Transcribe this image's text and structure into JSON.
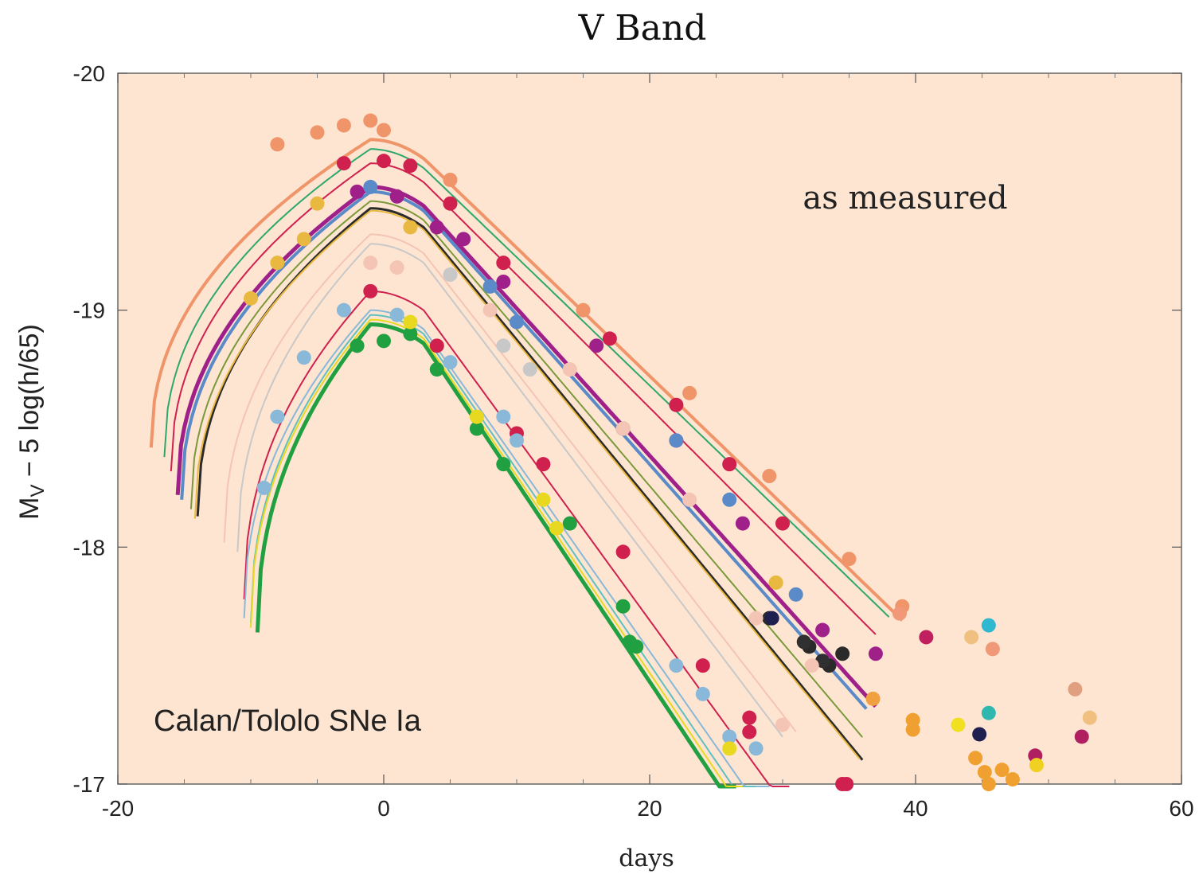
{
  "chart_data": {
    "type": "line",
    "title": "V Band",
    "xlabel": "days",
    "ylabel_main": "M",
    "ylabel_sub": "V",
    "ylabel_rest": " − 5 log(h/65)",
    "annotation_top": "as measured",
    "annotation_bottom": "Calan/Tololo SNe Ia",
    "xlim": [
      -20,
      60
    ],
    "ylim": [
      -20,
      -17
    ],
    "y_inverted": true,
    "x_ticks": [
      -20,
      0,
      20,
      40,
      60
    ],
    "y_ticks": [
      -20,
      -19,
      -18,
      -17
    ],
    "grid": false,
    "background": "#fde5d2",
    "series": [
      {
        "color": "#f0956a",
        "width": 4,
        "peak": -19.72,
        "start": -17.5,
        "decline": 0.052,
        "end": 39,
        "points": [
          [
            -8,
            -19.7
          ],
          [
            -5,
            -19.75
          ],
          [
            -3,
            -19.78
          ],
          [
            -1,
            -19.8
          ],
          [
            0,
            -19.76
          ],
          [
            5,
            -19.55
          ],
          [
            15,
            -19.0
          ],
          [
            23,
            -18.65
          ],
          [
            29,
            -18.3
          ],
          [
            35,
            -17.95
          ],
          [
            39,
            -17.75
          ]
        ]
      },
      {
        "color": "#2ea86a",
        "width": 2,
        "peak": -19.68,
        "start": -16.5,
        "decline": 0.052,
        "end": 38,
        "points": []
      },
      {
        "color": "#d0204e",
        "width": 2,
        "peak": -19.62,
        "start": -16,
        "decline": 0.054,
        "end": 37,
        "points": [
          [
            -3,
            -19.62
          ],
          [
            0,
            -19.63
          ],
          [
            2,
            -19.61
          ],
          [
            5,
            -19.45
          ],
          [
            9,
            -19.2
          ],
          [
            17,
            -18.88
          ],
          [
            22,
            -18.6
          ],
          [
            26,
            -18.35
          ],
          [
            30,
            -18.1
          ]
        ]
      },
      {
        "color": "#a0208a",
        "width": 5,
        "peak": -19.52,
        "start": -15.5,
        "decline": 0.06,
        "end": 37,
        "points": [
          [
            -2,
            -19.5
          ],
          [
            1,
            -19.48
          ],
          [
            4,
            -19.35
          ],
          [
            6,
            -19.3
          ],
          [
            9,
            -19.12
          ],
          [
            16,
            -18.85
          ],
          [
            22,
            -18.45
          ],
          [
            27,
            -18.1
          ],
          [
            33,
            -17.65
          ],
          [
            37,
            -17.55
          ]
        ]
      },
      {
        "color": "#5a8ac8",
        "width": 4,
        "peak": -19.5,
        "start": -15.2,
        "decline": 0.061,
        "end": 36.5,
        "points": [
          [
            -1,
            -19.52
          ],
          [
            8,
            -19.1
          ],
          [
            10,
            -18.95
          ],
          [
            22,
            -18.45
          ],
          [
            26,
            -18.2
          ],
          [
            31,
            -17.8
          ]
        ]
      },
      {
        "color": "#7a9a3a",
        "width": 2,
        "peak": -19.46,
        "start": -14.5,
        "decline": 0.064,
        "end": 36,
        "points": []
      },
      {
        "color": "#2a2a2a",
        "width": 3,
        "peak": -19.43,
        "start": -14,
        "decline": 0.066,
        "end": 36,
        "points": [
          [
            18,
            -18.5
          ],
          [
            29,
            -17.7
          ],
          [
            32,
            -17.58
          ],
          [
            33.5,
            -17.5
          ],
          [
            34.5,
            -17.55
          ]
        ]
      },
      {
        "color": "#e8b840",
        "width": 2,
        "peak": -19.42,
        "start": -14.2,
        "decline": 0.066,
        "end": 36,
        "points": [
          [
            -5,
            -19.45
          ],
          [
            -6,
            -19.3
          ],
          [
            -8,
            -19.2
          ],
          [
            -10,
            -19.05
          ],
          [
            2,
            -19.35
          ],
          [
            29.5,
            -17.85
          ]
        ]
      },
      {
        "color": "#f4c4b4",
        "width": 2,
        "peak": -19.32,
        "start": -12,
        "decline": 0.07,
        "end": 31,
        "points": [
          [
            -1,
            -19.2
          ],
          [
            1,
            -19.18
          ],
          [
            8,
            -19.0
          ],
          [
            14,
            -18.75
          ],
          [
            18,
            -18.5
          ],
          [
            23,
            -18.2
          ],
          [
            28,
            -17.7
          ],
          [
            30,
            -17.25
          ]
        ]
      },
      {
        "color": "#c8c8c8",
        "width": 2,
        "peak": -19.28,
        "start": -11,
        "decline": 0.072,
        "end": 30,
        "points": [
          [
            5,
            -19.15
          ],
          [
            9,
            -18.85
          ],
          [
            11,
            -18.75
          ]
        ]
      },
      {
        "color": "#d0204e",
        "width": 2,
        "peak": -19.08,
        "start": -10.5,
        "decline": 0.075,
        "end": 30.5,
        "points": [
          [
            -1,
            -19.08
          ],
          [
            4,
            -18.85
          ],
          [
            10,
            -18.48
          ],
          [
            12,
            -18.35
          ],
          [
            18,
            -17.98
          ],
          [
            24,
            -17.5
          ],
          [
            27.5,
            -17.28
          ],
          [
            27.5,
            -17.22
          ],
          [
            34.5,
            -17.0
          ]
        ]
      },
      {
        "color": "#8ab8d8",
        "width": 2,
        "peak": -19.0,
        "start": -10.5,
        "decline": 0.078,
        "end": 29,
        "points": [
          [
            -9,
            -18.25
          ],
          [
            -8,
            -18.55
          ],
          [
            -6,
            -18.8
          ],
          [
            -3,
            -19.0
          ],
          [
            1,
            -18.98
          ],
          [
            5,
            -18.78
          ],
          [
            9,
            -18.55
          ],
          [
            10,
            -18.45
          ],
          [
            22,
            -17.5
          ],
          [
            24,
            -17.38
          ],
          [
            26,
            -17.2
          ],
          [
            28,
            -17.15
          ]
        ]
      },
      {
        "color": "#60c0c0",
        "width": 2,
        "peak": -18.98,
        "start": -10,
        "decline": 0.08,
        "end": 28,
        "points": []
      },
      {
        "color": "#20a040",
        "width": 5,
        "peak": -18.94,
        "start": -9.5,
        "decline": 0.082,
        "end": 26.5,
        "points": [
          [
            -2,
            -18.85
          ],
          [
            0,
            -18.87
          ],
          [
            2,
            -18.9
          ],
          [
            4,
            -18.75
          ],
          [
            7,
            -18.5
          ],
          [
            9,
            -18.35
          ],
          [
            14,
            -18.1
          ],
          [
            18,
            -17.75
          ],
          [
            18.5,
            -17.6
          ],
          [
            19,
            -17.58
          ]
        ]
      },
      {
        "color": "#e8d820",
        "width": 2,
        "peak": -18.96,
        "start": -10,
        "decline": 0.081,
        "end": 27,
        "points": [
          [
            2,
            -18.95
          ],
          [
            7,
            -18.55
          ],
          [
            12,
            -18.2
          ],
          [
            13,
            -18.08
          ],
          [
            26,
            -17.15
          ]
        ]
      }
    ],
    "scatter_extra": [
      {
        "x": 40.8,
        "y": -17.62,
        "color": "#c02060"
      },
      {
        "x": 44.2,
        "y": -17.62,
        "color": "#f0c080"
      },
      {
        "x": 45.5,
        "y": -17.67,
        "color": "#30b8d0"
      },
      {
        "x": 45.8,
        "y": -17.57,
        "color": "#f09878"
      },
      {
        "x": 45.5,
        "y": -17.3,
        "color": "#30b8b0"
      },
      {
        "x": 36.8,
        "y": -17.36,
        "color": "#f0a040"
      },
      {
        "x": 39.8,
        "y": -17.23,
        "color": "#f0a030"
      },
      {
        "x": 39.8,
        "y": -17.27,
        "color": "#f0a030"
      },
      {
        "x": 43.2,
        "y": -17.25,
        "color": "#f0e020"
      },
      {
        "x": 44.8,
        "y": -17.21,
        "color": "#202050"
      },
      {
        "x": 44.5,
        "y": -17.11,
        "color": "#f0a030"
      },
      {
        "x": 45.2,
        "y": -17.05,
        "color": "#f0a030"
      },
      {
        "x": 46.5,
        "y": -17.06,
        "color": "#f0a030"
      },
      {
        "x": 47.3,
        "y": -17.02,
        "color": "#f0a030"
      },
      {
        "x": 45.5,
        "y": -17.0,
        "color": "#f0a030"
      },
      {
        "x": 49.0,
        "y": -17.12,
        "color": "#b02060"
      },
      {
        "x": 49.1,
        "y": -17.08,
        "color": "#f0d020"
      },
      {
        "x": 52.0,
        "y": -17.4,
        "color": "#e0a080"
      },
      {
        "x": 52.5,
        "y": -17.2,
        "color": "#b02060"
      },
      {
        "x": 53.1,
        "y": -17.28,
        "color": "#f0c080"
      },
      {
        "x": 34.8,
        "y": -17.0,
        "color": "#d02050"
      },
      {
        "x": 31.6,
        "y": -17.6,
        "color": "#303030"
      },
      {
        "x": 33.0,
        "y": -17.52,
        "color": "#303030"
      },
      {
        "x": 29.2,
        "y": -17.7,
        "color": "#202050"
      },
      {
        "x": 32.2,
        "y": -17.5,
        "color": "#f4c4b4"
      },
      {
        "x": 38.8,
        "y": -17.72,
        "color": "#f09878"
      }
    ]
  }
}
